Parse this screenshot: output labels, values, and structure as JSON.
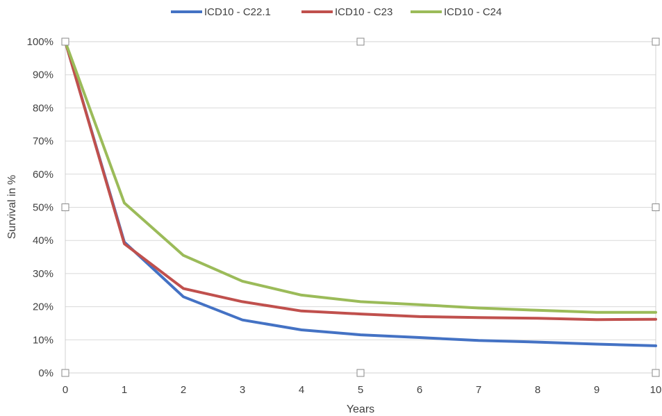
{
  "chart_data": {
    "type": "line",
    "title": "",
    "xlabel": "Years",
    "ylabel": "Survival in %",
    "x": [
      0,
      1,
      2,
      3,
      4,
      5,
      6,
      7,
      8,
      9,
      10
    ],
    "xlim": [
      0,
      10
    ],
    "ylim": [
      0,
      100
    ],
    "x_ticks": [
      "0",
      "1",
      "2",
      "3",
      "4",
      "5",
      "6",
      "7",
      "8",
      "9",
      "10"
    ],
    "y_ticks": [
      "0%",
      "10%",
      "20%",
      "30%",
      "40%",
      "50%",
      "60%",
      "70%",
      "80%",
      "90%",
      "100%"
    ],
    "grid": "horizontal",
    "legend_position": "top",
    "series": [
      {
        "name": "ICD10 - C22.1",
        "color": "#4472C4",
        "values": [
          100,
          39.5,
          23,
          16,
          13,
          11.5,
          10.7,
          9.8,
          9.3,
          8.7,
          8.2
        ]
      },
      {
        "name": "ICD10 - C23",
        "color": "#C0504D",
        "values": [
          100,
          39,
          25.5,
          21.5,
          18.7,
          17.8,
          17,
          16.7,
          16.5,
          16.1,
          16.2
        ]
      },
      {
        "name": "ICD10 - C24",
        "color": "#9BBB59",
        "values": [
          100,
          51.3,
          35.5,
          27.7,
          23.5,
          21.5,
          20.6,
          19.6,
          18.9,
          18.3,
          18.3
        ]
      }
    ]
  }
}
